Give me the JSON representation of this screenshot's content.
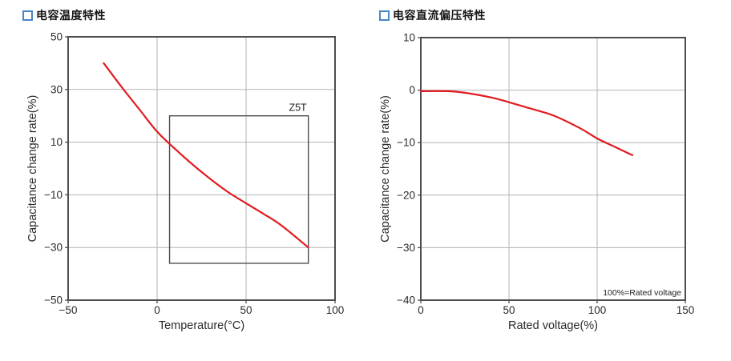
{
  "colors": {
    "accent_square": "#4786c7",
    "curve_red": "#e11b22",
    "frame_gray": "#4d4d4d",
    "grid_gray": "#b3b3b3",
    "background": "#ffffff"
  },
  "chart_data": [
    {
      "type": "line",
      "title": "电容温度特性",
      "xlabel": "Temperature(°C)",
      "ylabel": "Capacitance change rate(%)",
      "xlim": [
        -50,
        100
      ],
      "ylim": [
        -50,
        50
      ],
      "xticks": [
        -50,
        0,
        50,
        100
      ],
      "yticks": [
        50,
        30,
        10,
        -10,
        -30,
        -50
      ],
      "grid": true,
      "legend": "none",
      "series": [
        {
          "name": "capacitance-change-vs-temperature",
          "color": "#e11b22",
          "points": [
            [
              -30,
              40
            ],
            [
              -20,
              31
            ],
            [
              -10,
              22.5
            ],
            [
              0,
              14
            ],
            [
              10,
              7.5
            ],
            [
              20,
              1.5
            ],
            [
              30,
              -4
            ],
            [
              40,
              -9
            ],
            [
              50,
              -13.2
            ],
            [
              60,
              -17.3
            ],
            [
              70,
              -21.7
            ],
            [
              85,
              -30
            ]
          ]
        }
      ],
      "annotations": {
        "box": {
          "label": "Z5T",
          "x1": 7,
          "x2": 85,
          "y1": 20,
          "y2": -36
        }
      }
    },
    {
      "type": "line",
      "title": "电容直流偏压特性",
      "xlabel": "Rated voltage(%)",
      "ylabel": "Capacitance change rate(%)",
      "xlim": [
        0,
        150
      ],
      "ylim": [
        -40,
        10
      ],
      "xticks": [
        0,
        50,
        100,
        150
      ],
      "yticks": [
        10,
        0,
        -10,
        -20,
        -30,
        -40
      ],
      "grid": true,
      "legend": "none",
      "series": [
        {
          "name": "capacitance-change-vs-dc-bias",
          "color": "#e11b22",
          "points": [
            [
              0,
              -0.2
            ],
            [
              15,
              -0.2
            ],
            [
              25,
              -0.5
            ],
            [
              40,
              -1.4
            ],
            [
              50,
              -2.3
            ],
            [
              60,
              -3.3
            ],
            [
              75,
              -4.8
            ],
            [
              90,
              -7.2
            ],
            [
              100,
              -9.2
            ],
            [
              110,
              -10.8
            ],
            [
              120,
              -12.4
            ]
          ]
        }
      ],
      "annotations": {
        "note": "100%=Rated voltage"
      }
    }
  ]
}
